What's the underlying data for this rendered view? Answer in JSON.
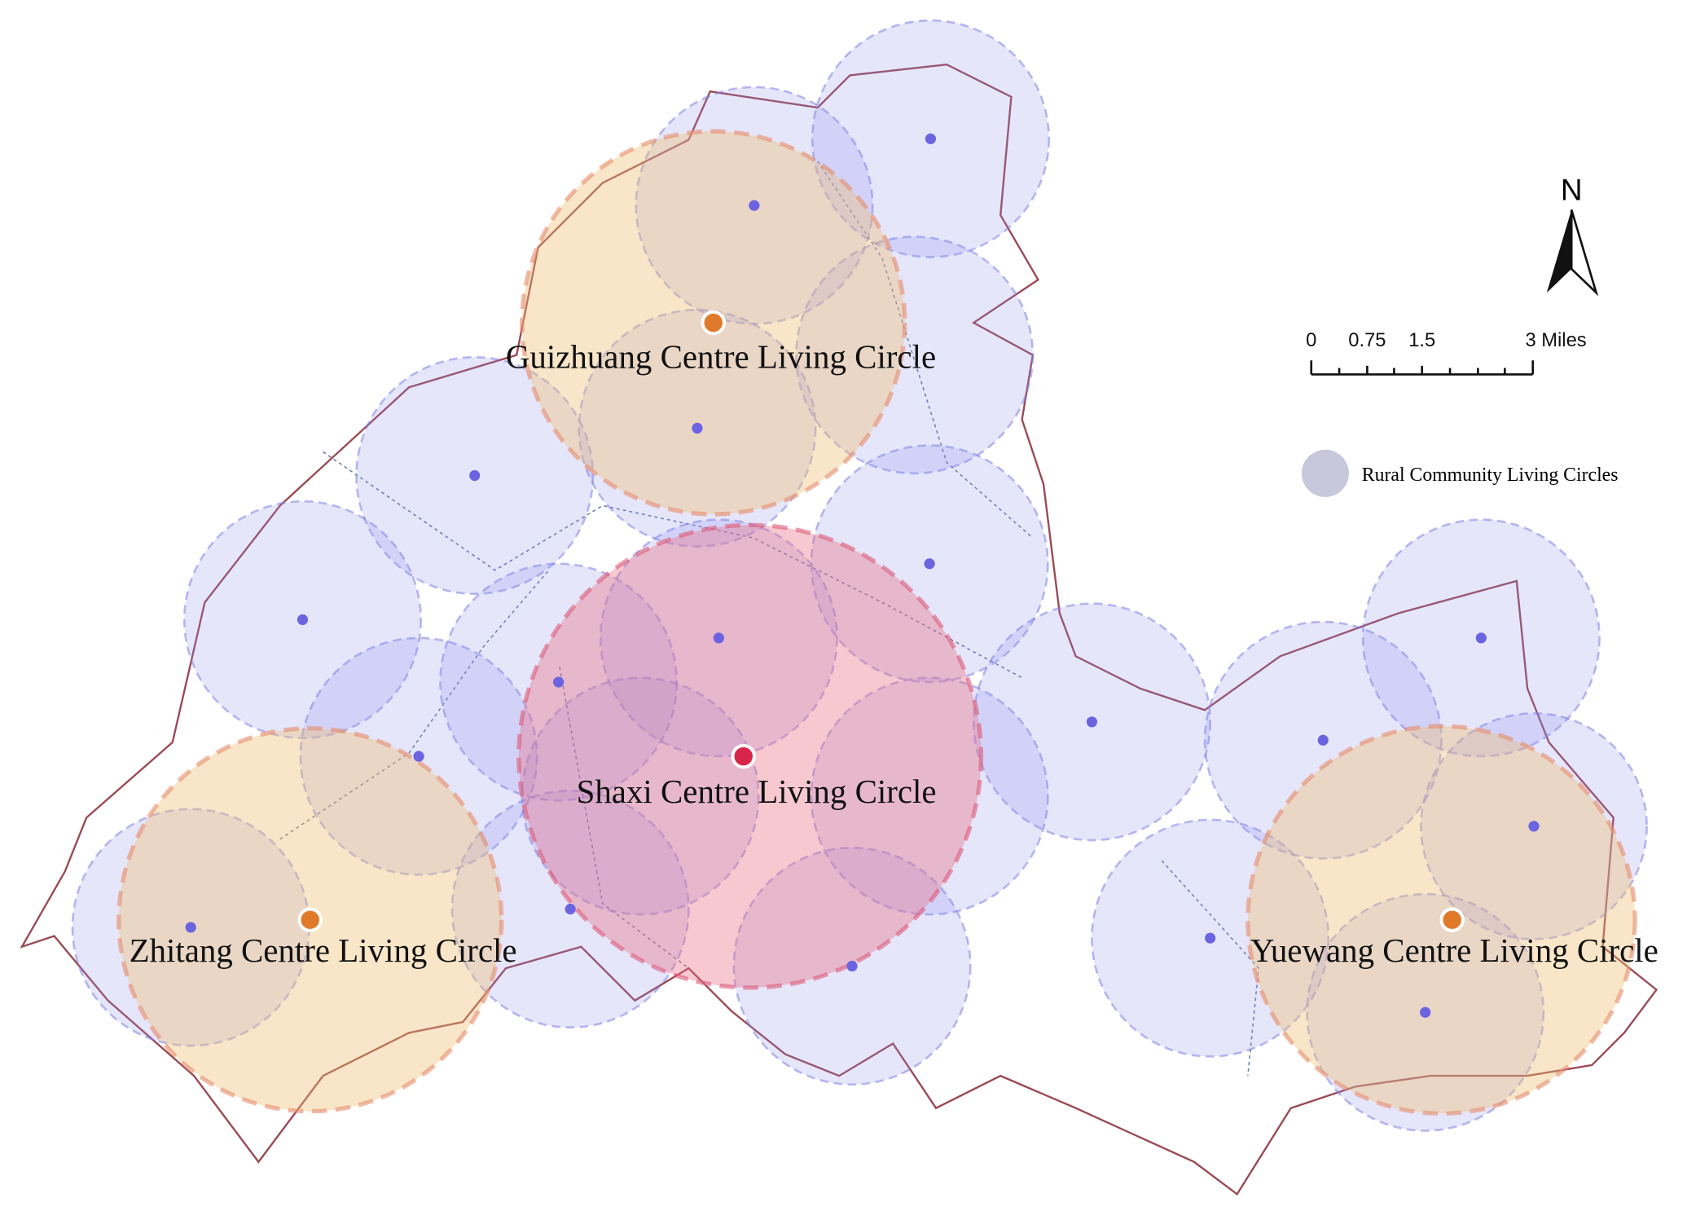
{
  "centres": [
    {
      "label": "Guizhuang Centre Living Circle"
    },
    {
      "label": "Shaxi Centre Living Circle"
    },
    {
      "label": "Zhitang Centre Living Circle"
    },
    {
      "label": "Yuewang Centre Living Circle"
    }
  ],
  "north_arrow": {
    "label": "N"
  },
  "scale_bar": {
    "labels": [
      "0",
      "0.75",
      "1.5",
      "3 Miles"
    ]
  },
  "legend": {
    "label": "Rural Community Living Circles"
  }
}
